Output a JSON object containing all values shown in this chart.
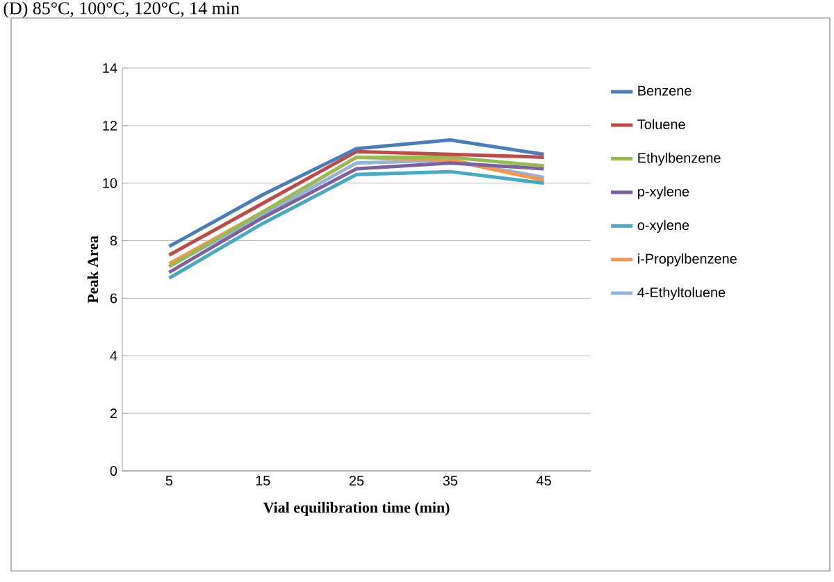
{
  "chart_data": {
    "type": "line",
    "title": "(D) 85°C, 100°C, 120°C, 14 min",
    "xlabel": "Vial equilibration time (min)",
    "ylabel": "Peak Area",
    "categories": [
      "5",
      "15",
      "25",
      "35",
      "45"
    ],
    "ylim": [
      0,
      14
    ],
    "yticks": [
      0,
      2,
      4,
      6,
      8,
      10,
      12,
      14
    ],
    "grid": "y",
    "legend": "right",
    "series": [
      {
        "name": "Benzene",
        "color": "#4a7ebb",
        "values": [
          7.8,
          9.6,
          11.2,
          11.5,
          11.0
        ]
      },
      {
        "name": "Toluene",
        "color": "#be4b48",
        "values": [
          7.5,
          9.3,
          11.1,
          11.0,
          10.9
        ]
      },
      {
        "name": "Ethylbenzene",
        "color": "#98b954",
        "values": [
          7.1,
          9.0,
          10.9,
          10.9,
          10.6
        ]
      },
      {
        "name": "p-xylene",
        "color": "#7d60a0",
        "values": [
          6.9,
          8.8,
          10.5,
          10.7,
          10.5
        ]
      },
      {
        "name": "o-xylene",
        "color": "#46aac5",
        "values": [
          6.7,
          8.6,
          10.3,
          10.4,
          10.0
        ]
      },
      {
        "name": "i-Propylbenzene",
        "color": "#f79646",
        "values": [
          7.2,
          9.0,
          10.9,
          10.8,
          10.1
        ]
      },
      {
        "name": "4-Ethyltoluene",
        "color": "#95b3d7",
        "values": [
          7.1,
          8.9,
          10.7,
          10.8,
          10.2
        ]
      }
    ]
  }
}
